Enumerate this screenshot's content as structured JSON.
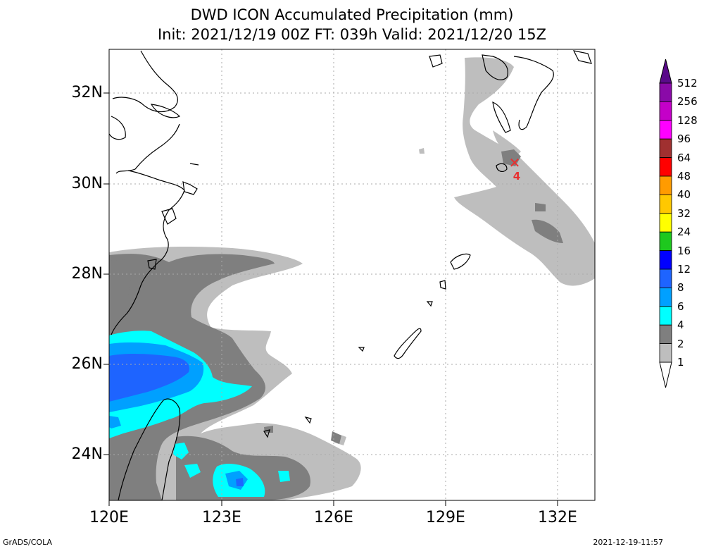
{
  "title": {
    "line1": "DWD ICON Accumulated Precipitation (mm)",
    "line2": "Init: 2021/12/19 00Z  FT: 039h  Valid: 2021/12/20 15Z"
  },
  "map": {
    "lat_labels": [
      "32N",
      "30N",
      "28N",
      "26N",
      "24N"
    ],
    "lon_labels": [
      "120E",
      "123E",
      "126E",
      "129E",
      "132E"
    ]
  },
  "colorbar": {
    "levels": [
      "512",
      "256",
      "128",
      "96",
      "64",
      "48",
      "40",
      "32",
      "24",
      "16",
      "12",
      "8",
      "6",
      "4",
      "2",
      "1"
    ],
    "colors": [
      "#5a0a8a",
      "#8a0aa8",
      "#c400c8",
      "#ff00ff",
      "#a03030",
      "#ff0000",
      "#ff9b00",
      "#ffc800",
      "#ffff00",
      "#1ec81e",
      "#0000ff",
      "#1e64ff",
      "#00a0ff",
      "#00ffff",
      "#7f7f7f",
      "#bebebe",
      "#ffffff"
    ]
  },
  "marker": {
    "symbol": "✕",
    "number": "4",
    "color": "#e83030"
  },
  "footer": {
    "left": "GrADS/COLA",
    "right": "2021-12-19-11:57"
  }
}
